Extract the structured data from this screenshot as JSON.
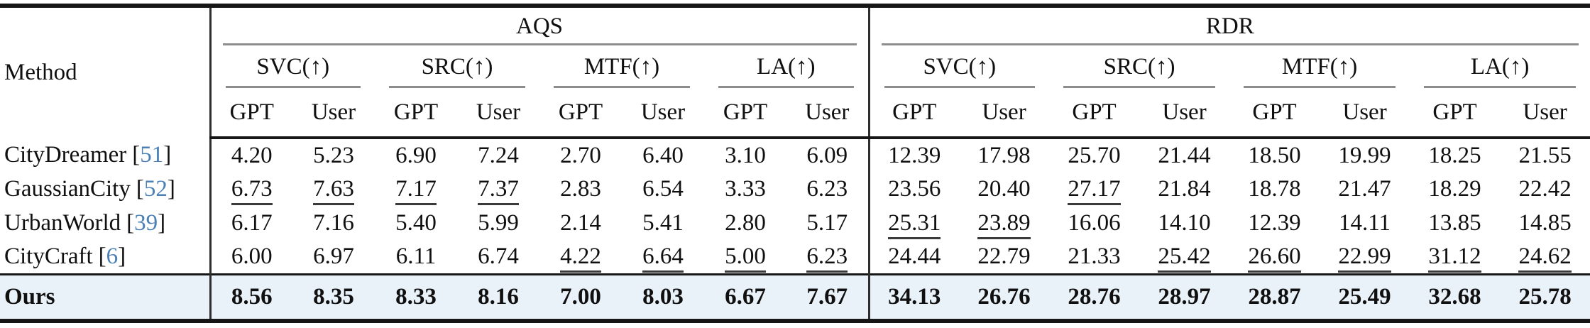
{
  "table": {
    "method_header": "Method",
    "cite_open": "[",
    "cite_close": "]",
    "rater_gpt": "GPT",
    "rater_user": "User",
    "groups": [
      {
        "label": "AQS",
        "metrics": [
          "SVC(↑)",
          "SRC(↑)",
          "MTF(↑)",
          "LA(↑)"
        ]
      },
      {
        "label": "RDR",
        "metrics": [
          "SVC(↑)",
          "SRC(↑)",
          "MTF(↑)",
          "LA(↑)"
        ]
      }
    ],
    "rows": [
      {
        "method": "CityDreamer",
        "cite": "51",
        "values": [
          "4.20",
          "5.23",
          "6.90",
          "7.24",
          "2.70",
          "6.40",
          "3.10",
          "6.09",
          "12.39",
          "17.98",
          "25.70",
          "21.44",
          "18.50",
          "19.99",
          "18.25",
          "21.55"
        ]
      },
      {
        "method": "GaussianCity",
        "cite": "52",
        "values": [
          "6.73",
          "7.63",
          "7.17",
          "7.37",
          "2.83",
          "6.54",
          "3.33",
          "6.23",
          "23.56",
          "20.40",
          "27.17",
          "21.84",
          "18.78",
          "21.47",
          "18.29",
          "22.42"
        ]
      },
      {
        "method": "UrbanWorld",
        "cite": "39",
        "values": [
          "6.17",
          "7.16",
          "5.40",
          "5.99",
          "2.14",
          "5.41",
          "2.80",
          "5.17",
          "25.31",
          "23.89",
          "16.06",
          "14.10",
          "12.39",
          "14.11",
          "13.85",
          "14.85"
        ]
      },
      {
        "method": "CityCraft",
        "cite": "6",
        "values": [
          "6.00",
          "6.97",
          "6.11",
          "6.74",
          "4.22",
          "6.64",
          "5.00",
          "6.23",
          "24.44",
          "22.79",
          "21.33",
          "25.42",
          "26.60",
          "22.99",
          "31.12",
          "24.62"
        ]
      },
      {
        "method": "Ours",
        "values": [
          "8.56",
          "8.35",
          "8.33",
          "8.16",
          "7.00",
          "8.03",
          "6.67",
          "7.67",
          "34.13",
          "26.76",
          "28.76",
          "28.97",
          "28.87",
          "25.49",
          "32.68",
          "25.78"
        ]
      }
    ],
    "colors": {
      "citation_blue": "#4b80b6",
      "ours_row_bg": "#e9f1f9",
      "cmidrule_gray": "#8d8d8d"
    }
  }
}
